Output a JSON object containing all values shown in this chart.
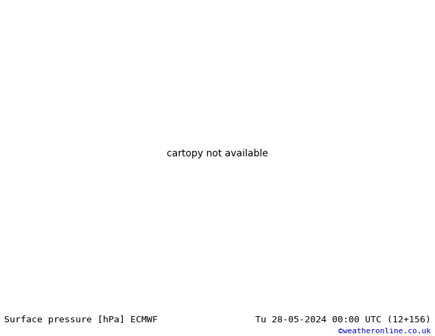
{
  "title_left": "Surface pressure [hPa] ECMWF",
  "title_right": "Tu 28-05-2024 00:00 UTC (12+156)",
  "watermark": "©weatheronline.co.uk",
  "watermark_color": "#0000cc",
  "land_color": "#c8e6a0",
  "sea_color": "#d0ecf8",
  "border_color": "#888888",
  "coastline_color": "#888888",
  "fig_width": 6.34,
  "fig_height": 4.9,
  "dpi": 100,
  "bottom_bar_color": "#ffffff",
  "title_fontsize": 9.5,
  "watermark_fontsize": 8,
  "extent": [
    22,
    110,
    0,
    58
  ],
  "black_contour_color": "#000000",
  "red_contour_color": "#cc0000",
  "blue_contour_color": "#0000dd"
}
